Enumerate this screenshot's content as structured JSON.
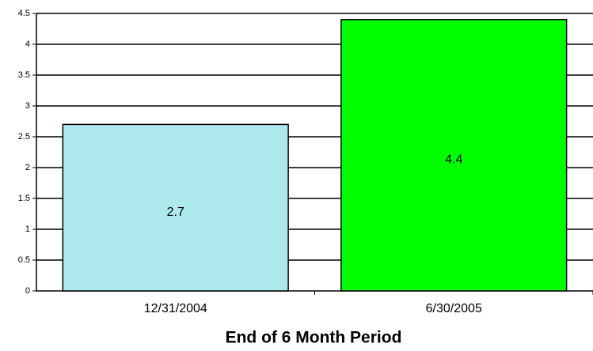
{
  "chart_data": {
    "type": "bar",
    "x_label": "End of 6 Month Period",
    "categories": [
      "12/31/2004",
      "6/30/2005"
    ],
    "values": [
      2.7,
      4.4
    ],
    "colors": [
      "#aeeaed",
      "#00ff00"
    ],
    "ylim": [
      0,
      4.5
    ],
    "yticks": [
      0,
      0.5,
      1,
      1.5,
      2,
      2.5,
      3,
      3.5,
      4,
      4.5
    ],
    "grid": true
  }
}
